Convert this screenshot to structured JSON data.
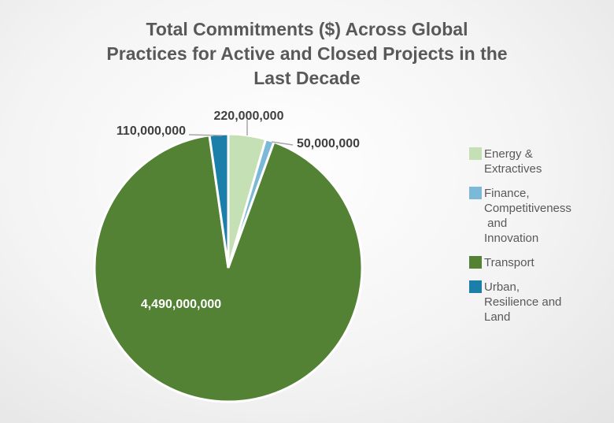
{
  "chart_data": {
    "type": "pie",
    "title_lines": [
      "Total Commitments ($) Across Global",
      "Practices for Active and Closed Projects in the",
      "Last Decade"
    ],
    "categories": [
      "Energy & Extractives",
      "Finance, Competitiveness and Innovation",
      "Transport",
      "Urban, Resilience and Land"
    ],
    "legend_lines": [
      [
        "Energy &",
        "Extractives"
      ],
      [
        "Finance,",
        "Competitiveness",
        " and",
        "Innovation"
      ],
      [
        "Transport"
      ],
      [
        "Urban,",
        "Resilience and",
        "Land"
      ]
    ],
    "values": [
      220000000,
      50000000,
      4490000000,
      110000000
    ],
    "data_labels": [
      "220,000,000",
      "50,000,000",
      "4,490,000,000",
      "110,000,000"
    ],
    "colors": [
      "#c5e0b4",
      "#7cb9d8",
      "#548235",
      "#1b7fa9"
    ],
    "legend_position": "right"
  }
}
